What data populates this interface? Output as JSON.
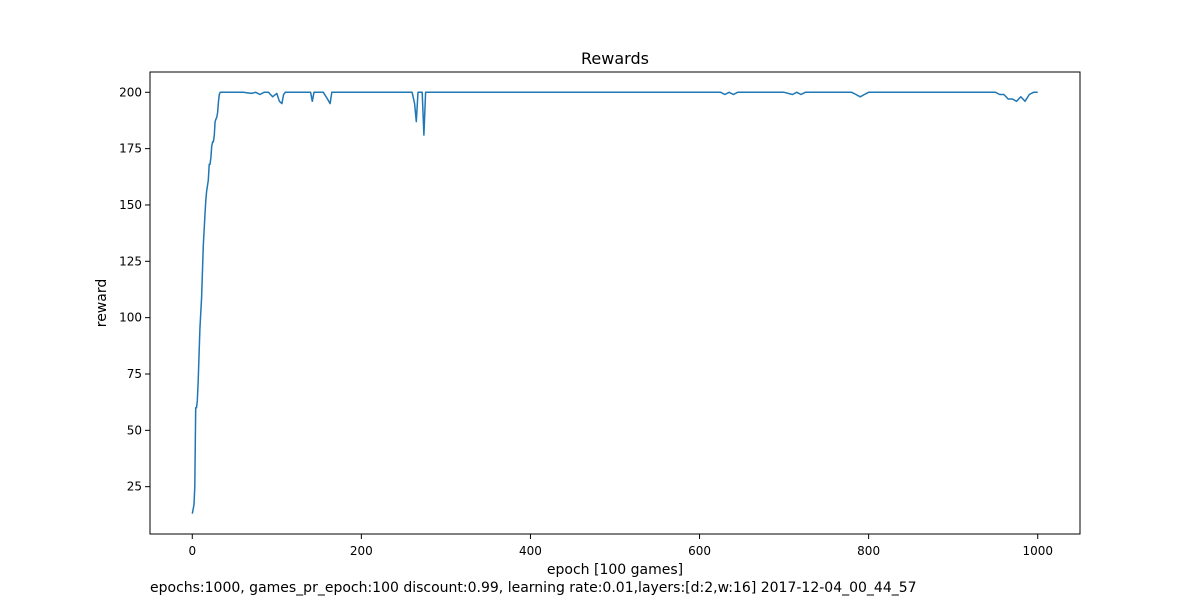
{
  "chart_data": {
    "type": "line",
    "title": "Rewards",
    "xlabel": "epoch [100 games]",
    "ylabel": "reward",
    "xlim": [
      -50,
      1050
    ],
    "ylim": [
      4,
      209
    ],
    "xticks": [
      0,
      200,
      400,
      600,
      800,
      1000
    ],
    "yticks": [
      25,
      50,
      75,
      100,
      125,
      150,
      175,
      200
    ],
    "grid": false,
    "line_color": "#1f77b4",
    "series": [
      {
        "x": [
          0,
          2,
          3,
          4,
          5,
          6,
          7,
          9,
          11,
          13,
          15,
          16,
          17,
          19,
          20,
          21,
          22,
          23,
          24,
          25,
          26,
          27,
          28,
          29,
          30,
          31,
          32,
          33,
          34,
          35,
          36,
          38,
          40,
          43,
          46,
          50,
          55,
          60,
          70,
          75,
          80,
          85,
          90,
          95,
          100,
          103,
          106,
          108,
          110,
          115,
          130,
          140,
          142,
          144,
          146,
          150,
          155,
          160,
          163,
          165,
          167,
          170,
          180,
          190,
          200,
          220,
          240,
          255,
          260,
          263,
          265,
          267,
          268,
          270,
          272,
          274,
          276,
          278,
          280,
          290,
          300,
          350,
          400,
          450,
          500,
          550,
          600,
          625,
          630,
          635,
          640,
          645,
          700,
          710,
          715,
          720,
          725,
          780,
          785,
          790,
          795,
          800,
          850,
          900,
          950,
          955,
          960,
          965,
          970,
          975,
          980,
          985,
          990,
          995,
          1000
        ],
        "y": [
          13,
          17,
          25,
          60,
          60,
          63,
          72,
          95,
          109,
          132,
          146,
          152,
          156,
          161,
          168,
          168,
          171,
          176,
          178,
          178,
          181,
          187,
          188,
          189,
          191,
          196,
          199,
          200,
          200,
          200,
          200,
          200,
          200,
          200,
          200,
          200,
          200,
          200,
          199.5,
          200,
          199,
          200,
          200,
          198,
          199.5,
          196,
          195,
          199,
          200,
          200,
          200,
          200,
          196,
          200,
          200,
          200,
          200,
          197,
          195,
          200,
          200,
          200,
          200,
          200,
          200,
          200,
          200,
          200,
          200,
          195,
          187,
          200,
          200,
          200,
          200,
          181,
          200,
          200,
          200,
          200,
          200,
          200,
          200,
          200,
          200,
          200,
          200,
          200,
          199,
          200,
          199,
          200,
          200,
          199,
          200,
          199,
          200,
          200,
          199,
          198,
          199,
          200,
          200,
          200,
          200,
          199,
          199,
          197,
          197,
          196,
          198,
          196,
          199,
          200,
          200
        ]
      }
    ]
  },
  "caption": "epochs:1000, games_pr_epoch:100 discount:0.99, learning rate:0.01,layers:[d:2,w:16] 2017-12-04_00_44_57"
}
